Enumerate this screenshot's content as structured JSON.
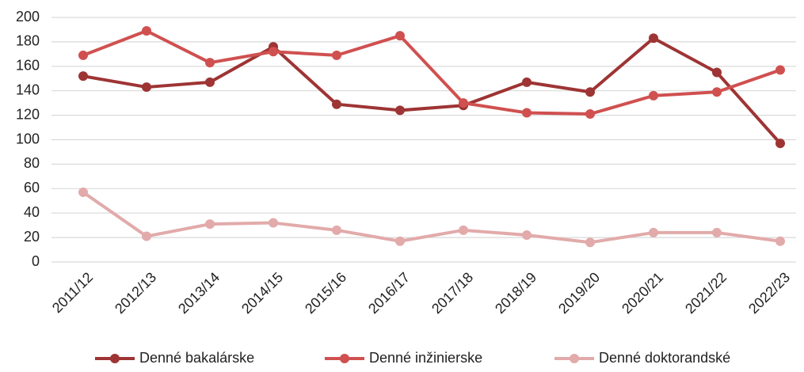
{
  "chart_data": {
    "type": "line",
    "categories": [
      "2011/12",
      "2012/13",
      "2013/14",
      "2014/15",
      "2015/16",
      "2016/17",
      "2017/18",
      "2018/19",
      "2019/20",
      "2020/21",
      "2021/22",
      "2022/23"
    ],
    "series": [
      {
        "name": "Denné bakalárske",
        "color": "#9e3434",
        "values": [
          152,
          143,
          147,
          176,
          129,
          124,
          128,
          147,
          139,
          183,
          155,
          97
        ]
      },
      {
        "name": "Denné inžinierske",
        "color": "#d05050",
        "values": [
          169,
          189,
          163,
          172,
          169,
          185,
          130,
          122,
          121,
          136,
          139,
          157
        ]
      },
      {
        "name": "Denné doktorandské",
        "color": "#e2aaaa",
        "values": [
          57,
          21,
          31,
          32,
          26,
          17,
          26,
          22,
          16,
          24,
          24,
          17
        ]
      }
    ],
    "ylim": [
      0,
      200
    ],
    "yticks": [
      0,
      20,
      40,
      60,
      80,
      100,
      120,
      140,
      160,
      180,
      200
    ],
    "grid": true,
    "legend": "bottom"
  }
}
